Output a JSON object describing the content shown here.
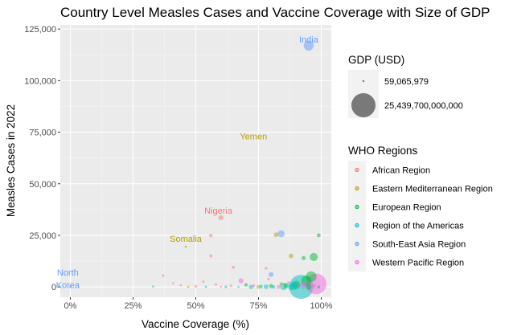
{
  "chart_data": {
    "type": "scatter",
    "title": "Country Level Measles Cases and Vaccine Coverage with Size of GDP",
    "xlabel": "Vaccine Coverage (%)",
    "ylabel": "Measles Cases in 2022",
    "xlim": [
      -4,
      104
    ],
    "ylim": [
      -5000,
      127000
    ],
    "x_ticks": [
      0,
      25,
      50,
      75,
      100
    ],
    "x_tick_labels": [
      "0%",
      "25%",
      "50%",
      "75%",
      "100%"
    ],
    "y_ticks": [
      0,
      25000,
      50000,
      75000,
      100000,
      125000
    ],
    "y_tick_labels": [
      "0",
      "25,000",
      "50,000",
      "75,000",
      "100,000",
      "125,000"
    ],
    "grid": true,
    "size_legend": {
      "title": "GDP (USD)",
      "entries": [
        {
          "label": "59,065,979",
          "gdp": 59065979
        },
        {
          "label": "25,439,700,000,000",
          "gdp": 25439700000000
        }
      ]
    },
    "color_legend": {
      "title": "WHO Regions",
      "placement": "right",
      "entries": [
        {
          "name": "African Region",
          "color": "#F8766D"
        },
        {
          "name": "Eastern Mediterranean Region",
          "color": "#B79F00"
        },
        {
          "name": "European Region",
          "color": "#00BA38"
        },
        {
          "name": "Region of the Americas",
          "color": "#00BFC4"
        },
        {
          "name": "South-East Asia Region",
          "color": "#619CFF"
        },
        {
          "name": "Western Pacific Region",
          "color": "#F564E3"
        }
      ]
    },
    "annotations": [
      {
        "text": "India",
        "x": 95,
        "y": 120000,
        "region": "South-East Asia Region"
      },
      {
        "text": "Yemen",
        "x": 73,
        "y": 73000,
        "region": "Eastern Mediterranean Region"
      },
      {
        "text": "Nigeria",
        "x": 59,
        "y": 37000,
        "region": "African Region"
      },
      {
        "text": "Somalia",
        "x": 46,
        "y": 23500,
        "region": "Eastern Mediterranean Region"
      },
      {
        "text": "North",
        "x": -1,
        "y": 7000,
        "region": "South-East Asia Region"
      },
      {
        "text": "Korea",
        "x": -1,
        "y": 1000,
        "region": "South-East Asia Region"
      }
    ],
    "points": [
      {
        "x": 95,
        "y": 117000,
        "gdp": 3400000000000,
        "region": "South-East Asia Region"
      },
      {
        "x": 60,
        "y": 33600,
        "gdp": 480000000000,
        "region": "African Region"
      },
      {
        "x": 46,
        "y": 19500,
        "gdp": 8000000000,
        "region": "Eastern Mediterranean Region"
      },
      {
        "x": 56,
        "y": 25000,
        "gdp": 120000000000,
        "region": "African Region"
      },
      {
        "x": 56,
        "y": 15000,
        "gdp": 60000000000,
        "region": "African Region"
      },
      {
        "x": 84,
        "y": 25800,
        "gdp": 1300000000000,
        "region": "South-East Asia Region"
      },
      {
        "x": 82,
        "y": 25300,
        "gdp": 380000000000,
        "region": "Eastern Mediterranean Region"
      },
      {
        "x": 99,
        "y": 25000,
        "gdp": 200000000000,
        "region": "European Region"
      },
      {
        "x": 97,
        "y": 14500,
        "gdp": 2000000000000,
        "region": "European Region"
      },
      {
        "x": 93,
        "y": 14000,
        "gdp": 250000000000,
        "region": "European Region"
      },
      {
        "x": 88,
        "y": 15000,
        "gdp": 380000000000,
        "region": "Eastern Mediterranean Region"
      },
      {
        "x": 80,
        "y": 6000,
        "gdp": 420000000000,
        "region": "South-East Asia Region"
      },
      {
        "x": 65,
        "y": 9500,
        "gdp": 40000000000,
        "region": "African Region"
      },
      {
        "x": 78,
        "y": 9000,
        "gdp": 30000000000,
        "region": "African Region"
      },
      {
        "x": 37,
        "y": 5500,
        "gdp": 12000000000,
        "region": "African Region"
      },
      {
        "x": 68,
        "y": 3000,
        "gdp": 500000000000,
        "region": "Western Pacific Region"
      },
      {
        "x": 92,
        "y": 0,
        "gdp": 25439700000000,
        "region": "Region of the Americas"
      },
      {
        "x": 98,
        "y": 1500,
        "gdp": 17900000000000,
        "region": "Western Pacific Region"
      },
      {
        "x": 96,
        "y": 5000,
        "gdp": 3900000000000,
        "region": "European Region"
      },
      {
        "x": 94,
        "y": 3000,
        "gdp": 3500000000000,
        "region": "European Region"
      },
      {
        "x": 90,
        "y": 1000,
        "gdp": 2100000000000,
        "region": "European Region"
      },
      {
        "x": 89,
        "y": 500,
        "gdp": 1900000000000,
        "region": "Region of the Americas"
      },
      {
        "x": 85,
        "y": 300,
        "gdp": 1500000000000,
        "region": "Region of the Americas"
      },
      {
        "x": 72,
        "y": 0,
        "gdp": 300000000000,
        "region": "Region of the Americas"
      },
      {
        "x": 76,
        "y": 200,
        "gdp": 150000000000,
        "region": "Region of the Americas"
      },
      {
        "x": 78,
        "y": 100,
        "gdp": 400000000000,
        "region": "Region of the Americas"
      },
      {
        "x": 75,
        "y": 0,
        "gdp": 200000000000,
        "region": "Eastern Mediterranean Region"
      },
      {
        "x": 80,
        "y": 400,
        "gdp": 300000000000,
        "region": "European Region"
      },
      {
        "x": 83,
        "y": 0,
        "gdp": 180000000000,
        "region": "Western Pacific Region"
      },
      {
        "x": 86,
        "y": 600,
        "gdp": 500000000000,
        "region": "European Region"
      },
      {
        "x": 88,
        "y": 0,
        "gdp": 900000000000,
        "region": "Region of the Americas"
      },
      {
        "x": 70,
        "y": 1000,
        "gdp": 100000000000,
        "region": "European Region"
      },
      {
        "x": 73,
        "y": 500,
        "gdp": 60000000000,
        "region": "Western Pacific Region"
      },
      {
        "x": 64,
        "y": 500,
        "gdp": 20000000000,
        "region": "African Region"
      },
      {
        "x": 62,
        "y": 0,
        "gdp": 30000000000,
        "region": "Region of the Americas"
      },
      {
        "x": 58,
        "y": 1200,
        "gdp": 15000000000,
        "region": "African Region"
      },
      {
        "x": 53,
        "y": 2500,
        "gdp": 10000000000,
        "region": "African Region"
      },
      {
        "x": 50,
        "y": 300,
        "gdp": 25000000000,
        "region": "African Region"
      },
      {
        "x": 47,
        "y": 0,
        "gdp": 5000000000,
        "region": "Eastern Mediterranean Region"
      },
      {
        "x": 44,
        "y": 800,
        "gdp": 3000000000,
        "region": "African Region"
      },
      {
        "x": 41,
        "y": 1800,
        "gdp": 2000000000,
        "region": "African Region"
      },
      {
        "x": 33,
        "y": 200,
        "gdp": 1000000000,
        "region": "European Region"
      },
      {
        "x": 54,
        "y": 0,
        "gdp": 6000000000,
        "region": "Region of the Americas"
      },
      {
        "x": 60,
        "y": 100,
        "gdp": 1500000000,
        "region": "African Region"
      },
      {
        "x": 67,
        "y": 0,
        "gdp": 2500000000,
        "region": "Region of the Americas"
      },
      {
        "x": 79,
        "y": 3800,
        "gdp": 20000000000,
        "region": "African Region"
      },
      {
        "x": 91,
        "y": 200,
        "gdp": 8000000000,
        "region": "Western Pacific Region"
      },
      {
        "x": 95,
        "y": 0,
        "gdp": 700000000000,
        "region": "European Region"
      },
      {
        "x": 97,
        "y": 500,
        "gdp": 300000000000,
        "region": "Western Pacific Region"
      },
      {
        "x": 99,
        "y": 0,
        "gdp": 50000000000,
        "region": "European Region"
      },
      {
        "x": 84,
        "y": 1500,
        "gdp": 70000000000,
        "region": "Eastern Mediterranean Region"
      },
      {
        "x": 87,
        "y": 2000,
        "gdp": 40000000000,
        "region": "Western Pacific Region"
      },
      {
        "x": 93,
        "y": 800,
        "gdp": 1100000000000,
        "region": "Western Pacific Region"
      },
      {
        "x": 81,
        "y": 0,
        "gdp": 100000000000,
        "region": "Region of the Americas"
      },
      {
        "x": 0,
        "y": 0,
        "gdp": 18000000000,
        "region": "South-East Asia Region"
      }
    ]
  }
}
